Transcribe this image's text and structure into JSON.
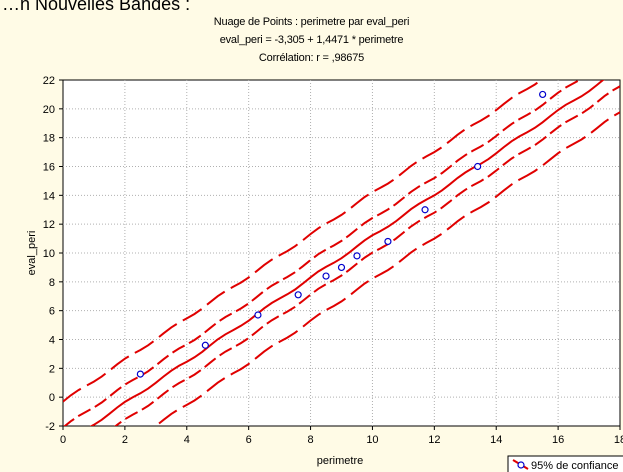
{
  "page": {
    "heading": "…n  Nouvelles Bandes :"
  },
  "chart_data": {
    "type": "scatter",
    "title": "Nuage de Points : perimetre par eval_peri",
    "subtitle": "eval_peri = -3,305 + 1,4471 * perimetre",
    "subtitle2": "Corrélation: r = ,98675",
    "xlabel": "perimetre",
    "ylabel": "eval_peri",
    "xlim": [
      0,
      18
    ],
    "ylim": [
      -2,
      22
    ],
    "xticks": [
      0,
      2,
      4,
      6,
      8,
      10,
      12,
      14,
      16,
      18
    ],
    "yticks": [
      -2,
      0,
      2,
      4,
      6,
      8,
      10,
      12,
      14,
      16,
      18,
      20,
      22
    ],
    "grid": true,
    "legend": {
      "position": "bottom-right",
      "entries": [
        "95% de confiance"
      ]
    },
    "regression": {
      "intercept": -3.305,
      "slope": 1.4471
    },
    "colors": {
      "line": "#e00000",
      "points": "#0000cc",
      "background": "#fffbe6",
      "plot": "#ffffff"
    },
    "points": [
      {
        "x": 2.5,
        "y": 1.6
      },
      {
        "x": 4.6,
        "y": 3.6
      },
      {
        "x": 6.3,
        "y": 5.7
      },
      {
        "x": 7.6,
        "y": 7.1
      },
      {
        "x": 8.5,
        "y": 8.4
      },
      {
        "x": 9.0,
        "y": 9.0
      },
      {
        "x": 9.5,
        "y": 9.8
      },
      {
        "x": 10.5,
        "y": 10.8
      },
      {
        "x": 11.7,
        "y": 13.0
      },
      {
        "x": 13.4,
        "y": 16.0
      },
      {
        "x": 15.5,
        "y": 21.0
      }
    ]
  }
}
